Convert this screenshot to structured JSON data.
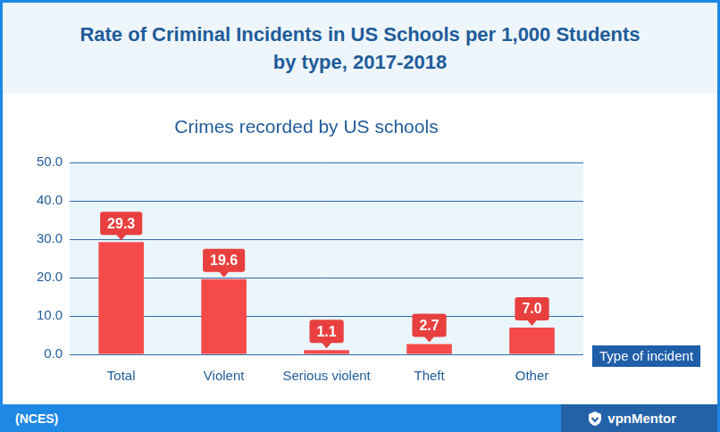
{
  "chart_data": {
    "type": "bar",
    "title": "Rate of Criminal Incidents in US Schools per 1,000 Students by type, 2017-2018",
    "subtitle": "Crimes recorded by US schools",
    "x_label": "Type of incident",
    "source": "(NCES)",
    "credit": "vpnMentor",
    "categories": [
      "Total",
      "Violent",
      "Serious violent",
      "Theft",
      "Other"
    ],
    "values": [
      29.3,
      19.6,
      1.1,
      2.7,
      7.0
    ],
    "value_labels": [
      "29.3",
      "19.6",
      "1.1",
      "2.7",
      "7.0"
    ],
    "color": "#f44a4a",
    "ylim": [
      0,
      50
    ],
    "yticks": [
      {
        "value": 0,
        "label": "0.0"
      },
      {
        "value": 10,
        "label": "10.0"
      },
      {
        "value": 20,
        "label": "20.0"
      },
      {
        "value": 30,
        "label": "30.0"
      },
      {
        "value": 40,
        "label": "40.0"
      },
      {
        "value": 50,
        "label": "50.0"
      }
    ],
    "grid": true,
    "data_labels": true
  }
}
